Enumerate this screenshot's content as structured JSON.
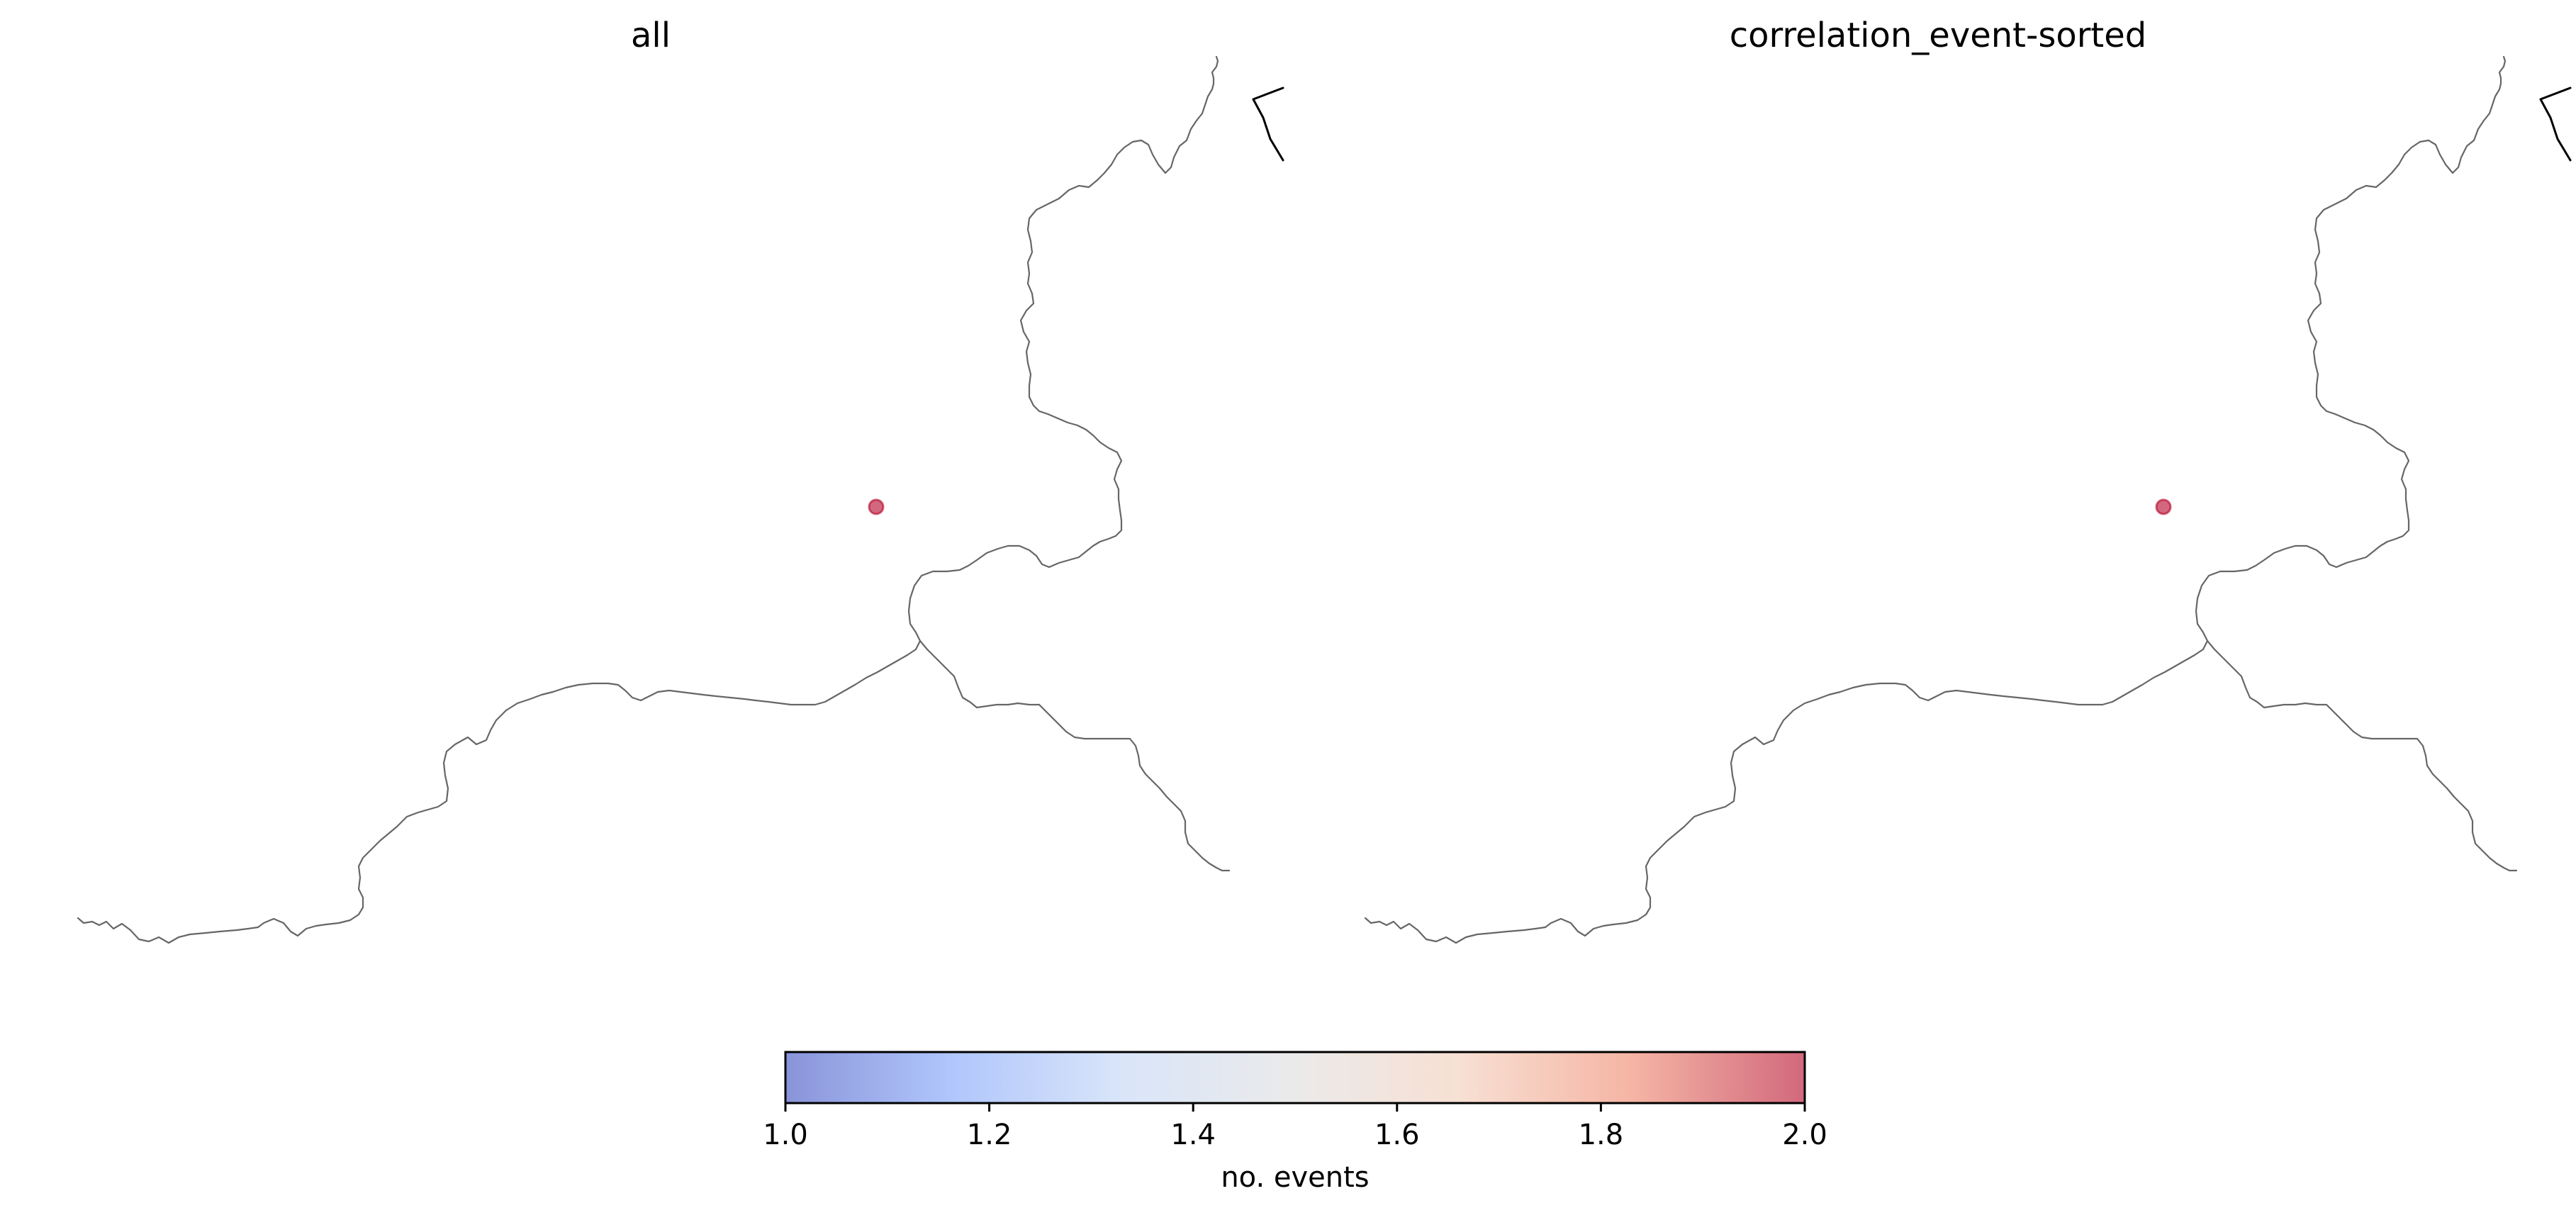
{
  "panels": [
    {
      "id": "all",
      "title": "all",
      "markers": [
        {
          "value": 2.0
        }
      ]
    },
    {
      "id": "correlation",
      "title": "correlation_event-sorted",
      "markers": [
        {
          "value": 2.0
        }
      ]
    }
  ],
  "colorbar": {
    "label": "no. events",
    "min": 1.0,
    "max": 2.0,
    "ticks": [
      "1.0",
      "1.2",
      "1.4",
      "1.6",
      "1.8",
      "2.0"
    ],
    "colormap": "coolwarm",
    "alpha": 0.6,
    "stops": [
      "#3b4cc0",
      "#7b9ff9",
      "#c0d4f5",
      "#dddcdc",
      "#f2cbb7",
      "#ee8468",
      "#b40426"
    ]
  },
  "colors": {
    "border": "#666666",
    "edge": "#000000"
  }
}
